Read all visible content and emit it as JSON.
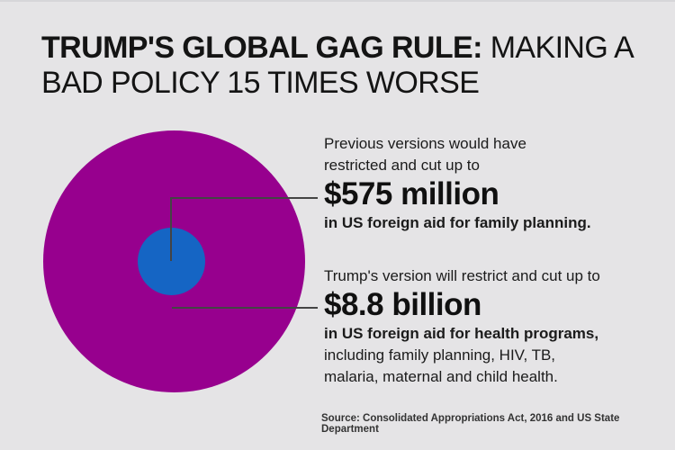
{
  "title": {
    "line1_bold": "TRUMP'S GLOBAL GAG RULE:",
    "line1_regular": "MAKING A",
    "line2": "BAD POLICY 15 TIMES WORSE"
  },
  "annotations": {
    "previous": {
      "intro_line1": "Previous versions would have",
      "intro_line2": "restricted and cut up to",
      "amount": "$575 million",
      "detail_bold": "in US foreign aid for family planning."
    },
    "trump": {
      "intro": "Trump's version will restrict and cut up to",
      "amount": "$8.8 billion",
      "detail_bold": "in US foreign aid for health programs,",
      "detail_line2": "including family planning, HIV, TB,",
      "detail_line3": "malaria, maternal and child health."
    }
  },
  "source": "Source: Consolidated Appropriations Act, 2016 and US State Department",
  "colors": {
    "background": "#e5e4e6",
    "purple": "#97008e",
    "blue": "#1565c4",
    "leader_line": "#444444"
  },
  "chart_data": {
    "type": "area",
    "variant": "nested-proportional-area-circles",
    "title": "TRUMP'S GLOBAL GAG RULE: MAKING A BAD POLICY 15 TIMES WORSE",
    "series": [
      {
        "name": "Trump's version will restrict and cut up to",
        "label": "$8.8 billion",
        "description": "in US foreign aid for health programs, including family planning, HIV, TB, malaria, maternal and child health.",
        "value_usd": 8800000000,
        "color": "#97008e"
      },
      {
        "name": "Previous versions would have restricted and cut up to",
        "label": "$575 million",
        "description": "in US foreign aid for family planning.",
        "value_usd": 575000000,
        "color": "#1565c4"
      }
    ],
    "ratio_text": "15 times",
    "legend_position": "none",
    "source": "Source: Consolidated Appropriations Act, 2016 and US State Department"
  }
}
